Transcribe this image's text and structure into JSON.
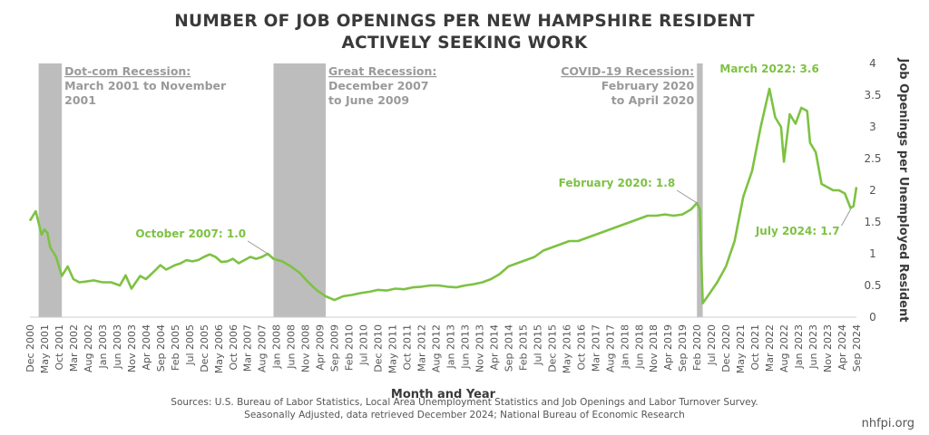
{
  "title_line1": "NUMBER OF JOB OPENINGS PER NEW HAMPSHIRE RESIDENT",
  "title_line2": "ACTIVELY SEEKING WORK",
  "source_line1": "Sources: U.S. Bureau of Labor Statistics, Local Area Unemployment Statistics and Job Openings and Labor Turnover Survey.",
  "source_line2": "Seasonally Adjusted, data retrieved December 2024; National Bureau of Economic Research",
  "brand": "nhfpi.org",
  "colors": {
    "line": "#7dc242",
    "recession": "#bdbdbd",
    "axis": "#555555",
    "annotation_recession": "#9a9a9a"
  },
  "chart_data": {
    "type": "line",
    "xlabel": "Month and Year",
    "ylabel": "Job Openings per Unemployed Resident",
    "ylim": [
      0,
      4
    ],
    "y_ticks": [
      0,
      0.5,
      1,
      1.5,
      2,
      2.5,
      3,
      3.5,
      4
    ],
    "y_tick_labels": [
      "0",
      "0.5",
      "1",
      "1.5",
      "2",
      "2.5",
      "3",
      "3.5",
      "4"
    ],
    "y_axis_side": "right",
    "grid": false,
    "x_start": "2000-12",
    "x_end": "2024-09",
    "x_ticks": [
      "Dec 2000",
      "May 2001",
      "Oct 2001",
      "Mar 2002",
      "Aug 2002",
      "Jan 2003",
      "Jun 2003",
      "Nov 2003",
      "Apr 2004",
      "Sep 2004",
      "Feb 2005",
      "Jul 2005",
      "Dec 2005",
      "May 2006",
      "Oct 2006",
      "Mar 2007",
      "Aug 2007",
      "Jan 2008",
      "Jun 2008",
      "Nov 2008",
      "Apr 2009",
      "Sep 2009",
      "Feb 2010",
      "Jul 2010",
      "Dec 2010",
      "May 2011",
      "Oct 2011",
      "Mar 2012",
      "Aug 2012",
      "Jan 2013",
      "Jun 2013",
      "Nov 2013",
      "Apr 2014",
      "Sep 2014",
      "Feb 2015",
      "Jul 2015",
      "Dec 2015",
      "May 2016",
      "Oct 2016",
      "Mar 2017",
      "Aug 2017",
      "Jan 2018",
      "Jun 2018",
      "Nov 2018",
      "Apr 2019",
      "Sep 2019",
      "Feb 2020",
      "Jul 2020",
      "Dec 2020",
      "May 2021",
      "Oct 2021",
      "Mar 2022",
      "Aug 2022",
      "Jan 2023",
      "Jun 2023",
      "Nov 2023",
      "Apr 2024",
      "Sep 2024"
    ],
    "series": [
      {
        "points": [
          [
            "2000-12",
            1.52
          ],
          [
            "2001-02",
            1.67
          ],
          [
            "2001-04",
            1.3
          ],
          [
            "2001-05",
            1.38
          ],
          [
            "2001-06",
            1.33
          ],
          [
            "2001-07",
            1.1
          ],
          [
            "2001-09",
            0.95
          ],
          [
            "2001-11",
            0.65
          ],
          [
            "2002-01",
            0.8
          ],
          [
            "2002-03",
            0.6
          ],
          [
            "2002-05",
            0.55
          ],
          [
            "2002-07",
            0.56
          ],
          [
            "2002-10",
            0.58
          ],
          [
            "2003-01",
            0.55
          ],
          [
            "2003-04",
            0.55
          ],
          [
            "2003-07",
            0.5
          ],
          [
            "2003-09",
            0.66
          ],
          [
            "2003-11",
            0.45
          ],
          [
            "2004-02",
            0.65
          ],
          [
            "2004-04",
            0.6
          ],
          [
            "2004-07",
            0.73
          ],
          [
            "2004-09",
            0.82
          ],
          [
            "2004-11",
            0.75
          ],
          [
            "2005-02",
            0.82
          ],
          [
            "2005-04",
            0.85
          ],
          [
            "2005-06",
            0.9
          ],
          [
            "2005-08",
            0.88
          ],
          [
            "2005-10",
            0.9
          ],
          [
            "2005-12",
            0.95
          ],
          [
            "2006-02",
            0.99
          ],
          [
            "2006-04",
            0.95
          ],
          [
            "2006-06",
            0.87
          ],
          [
            "2006-08",
            0.88
          ],
          [
            "2006-10",
            0.92
          ],
          [
            "2006-12",
            0.85
          ],
          [
            "2007-02",
            0.9
          ],
          [
            "2007-04",
            0.95
          ],
          [
            "2007-06",
            0.92
          ],
          [
            "2007-08",
            0.95
          ],
          [
            "2007-10",
            1.0
          ],
          [
            "2007-12",
            0.92
          ],
          [
            "2008-03",
            0.88
          ],
          [
            "2008-06",
            0.8
          ],
          [
            "2008-09",
            0.7
          ],
          [
            "2008-12",
            0.55
          ],
          [
            "2009-03",
            0.42
          ],
          [
            "2009-06",
            0.33
          ],
          [
            "2009-09",
            0.27
          ],
          [
            "2009-12",
            0.33
          ],
          [
            "2010-03",
            0.35
          ],
          [
            "2010-06",
            0.38
          ],
          [
            "2010-09",
            0.4
          ],
          [
            "2010-12",
            0.43
          ],
          [
            "2011-03",
            0.42
          ],
          [
            "2011-06",
            0.45
          ],
          [
            "2011-09",
            0.44
          ],
          [
            "2011-12",
            0.47
          ],
          [
            "2012-03",
            0.48
          ],
          [
            "2012-06",
            0.5
          ],
          [
            "2012-09",
            0.5
          ],
          [
            "2012-12",
            0.48
          ],
          [
            "2013-03",
            0.47
          ],
          [
            "2013-06",
            0.5
          ],
          [
            "2013-09",
            0.52
          ],
          [
            "2013-12",
            0.55
          ],
          [
            "2014-03",
            0.6
          ],
          [
            "2014-06",
            0.68
          ],
          [
            "2014-09",
            0.8
          ],
          [
            "2014-12",
            0.85
          ],
          [
            "2015-03",
            0.9
          ],
          [
            "2015-06",
            0.95
          ],
          [
            "2015-09",
            1.05
          ],
          [
            "2015-12",
            1.1
          ],
          [
            "2016-03",
            1.15
          ],
          [
            "2016-06",
            1.2
          ],
          [
            "2016-09",
            1.2
          ],
          [
            "2016-12",
            1.25
          ],
          [
            "2017-03",
            1.3
          ],
          [
            "2017-06",
            1.35
          ],
          [
            "2017-09",
            1.4
          ],
          [
            "2017-12",
            1.45
          ],
          [
            "2018-03",
            1.5
          ],
          [
            "2018-06",
            1.55
          ],
          [
            "2018-09",
            1.6
          ],
          [
            "2018-12",
            1.6
          ],
          [
            "2019-03",
            1.62
          ],
          [
            "2019-06",
            1.6
          ],
          [
            "2019-09",
            1.62
          ],
          [
            "2019-12",
            1.7
          ],
          [
            "2020-02",
            1.8
          ],
          [
            "2020-03",
            1.7
          ],
          [
            "2020-04",
            0.22
          ],
          [
            "2020-06",
            0.35
          ],
          [
            "2020-09",
            0.55
          ],
          [
            "2020-12",
            0.8
          ],
          [
            "2021-03",
            1.2
          ],
          [
            "2021-06",
            1.9
          ],
          [
            "2021-09",
            2.3
          ],
          [
            "2021-12",
            3.0
          ],
          [
            "2022-02",
            3.4
          ],
          [
            "2022-03",
            3.6
          ],
          [
            "2022-05",
            3.15
          ],
          [
            "2022-07",
            3.0
          ],
          [
            "2022-08",
            2.45
          ],
          [
            "2022-10",
            3.2
          ],
          [
            "2022-12",
            3.05
          ],
          [
            "2023-02",
            3.3
          ],
          [
            "2023-04",
            3.25
          ],
          [
            "2023-05",
            2.75
          ],
          [
            "2023-07",
            2.6
          ],
          [
            "2023-09",
            2.1
          ],
          [
            "2023-11",
            2.05
          ],
          [
            "2024-01",
            2.0
          ],
          [
            "2024-03",
            2.0
          ],
          [
            "2024-05",
            1.95
          ],
          [
            "2024-07",
            1.72
          ],
          [
            "2024-08",
            1.75
          ],
          [
            "2024-09",
            2.05
          ]
        ]
      }
    ],
    "recessions": [
      {
        "start": "2001-03",
        "end": "2001-11",
        "label_lines": [
          "Dot-com Recession:",
          "March 2001 to November",
          "2001"
        ],
        "label_align": "left"
      },
      {
        "start": "2007-12",
        "end": "2009-06",
        "label_lines": [
          "Great Recession:",
          "December 2007",
          "to June 2009"
        ],
        "label_align": "left"
      },
      {
        "start": "2020-02",
        "end": "2020-04",
        "label_lines": [
          "COVID-19 Recession:",
          "February 2020",
          "to April 2020"
        ],
        "label_align": "right"
      }
    ],
    "annotations": [
      {
        "text": "October 2007: 1.0",
        "date": "2007-10",
        "value": 1.0,
        "placement": "upper-left"
      },
      {
        "text": "February 2020: 1.8",
        "date": "2020-02",
        "value": 1.8,
        "placement": "upper-left"
      },
      {
        "text": "March 2022: 3.6",
        "date": "2022-03",
        "value": 3.6,
        "placement": "top"
      },
      {
        "text": "July 2024: 1.7",
        "date": "2024-07",
        "value": 1.7,
        "placement": "lower-left"
      }
    ]
  }
}
